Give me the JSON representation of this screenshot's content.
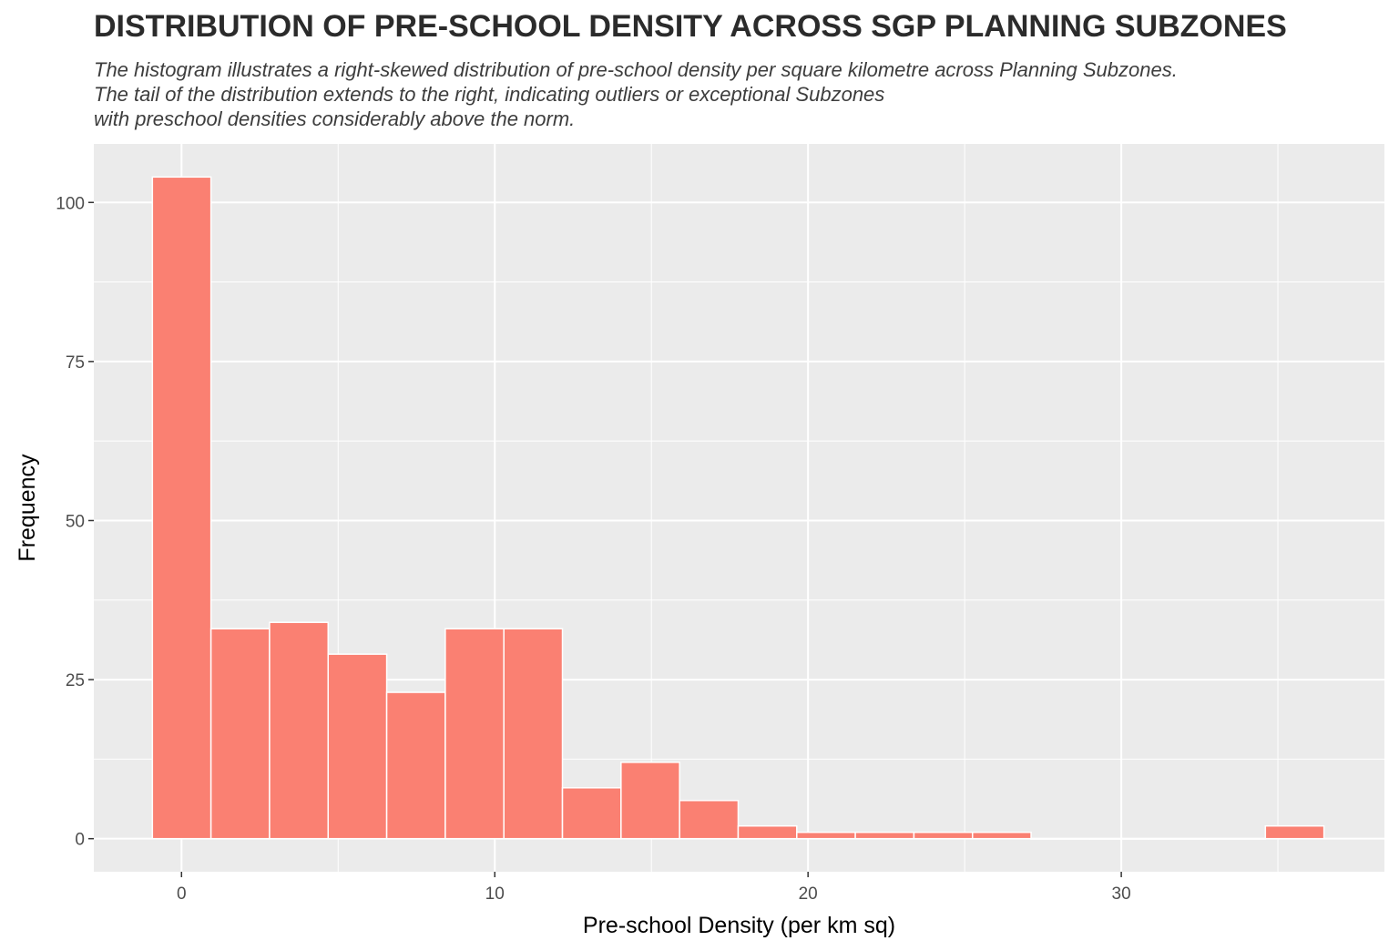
{
  "chart_data": {
    "type": "bar",
    "title": "DISTRIBUTION OF PRE-SCHOOL DENSITY ACROSS SGP PLANNING SUBZONES",
    "subtitle_lines": [
      "The histogram illustrates a right-skewed distribution of pre-school density per square kilometre across Planning Subzones.",
      "The tail of the distribution extends to the right, indicating outliers or exceptional Subzones",
      "with preschool densities considerably above the norm."
    ],
    "xlabel": "Pre-school Density (per km sq)",
    "ylabel": "Frequency",
    "xlim": [
      -2.8,
      38.4
    ],
    "ylim": [
      -5.2,
      109.2
    ],
    "x_ticks": [
      0,
      10,
      20,
      30
    ],
    "y_ticks": [
      0,
      25,
      50,
      75,
      100
    ],
    "x_tick_labels": [
      "0",
      "10",
      "20",
      "30"
    ],
    "y_tick_labels": [
      "0",
      "25",
      "50",
      "75",
      "100"
    ],
    "grid": true,
    "bin_width": 1.87,
    "bins": [
      {
        "x0": -0.93,
        "x1": 0.94,
        "count": 104
      },
      {
        "x0": 0.94,
        "x1": 2.81,
        "count": 33
      },
      {
        "x0": 2.81,
        "x1": 4.68,
        "count": 34
      },
      {
        "x0": 4.68,
        "x1": 6.55,
        "count": 29
      },
      {
        "x0": 6.55,
        "x1": 8.42,
        "count": 23
      },
      {
        "x0": 8.42,
        "x1": 10.29,
        "count": 33
      },
      {
        "x0": 10.29,
        "x1": 12.16,
        "count": 33
      },
      {
        "x0": 12.16,
        "x1": 14.03,
        "count": 8
      },
      {
        "x0": 14.03,
        "x1": 15.9,
        "count": 12
      },
      {
        "x0": 15.9,
        "x1": 17.77,
        "count": 6
      },
      {
        "x0": 17.77,
        "x1": 19.64,
        "count": 2
      },
      {
        "x0": 19.64,
        "x1": 21.51,
        "count": 1
      },
      {
        "x0": 21.51,
        "x1": 23.38,
        "count": 1
      },
      {
        "x0": 23.38,
        "x1": 25.25,
        "count": 1
      },
      {
        "x0": 25.25,
        "x1": 27.12,
        "count": 1
      },
      {
        "x0": 27.12,
        "x1": 28.99,
        "count": 0
      },
      {
        "x0": 28.99,
        "x1": 30.86,
        "count": 0
      },
      {
        "x0": 30.86,
        "x1": 32.73,
        "count": 0
      },
      {
        "x0": 32.73,
        "x1": 34.6,
        "count": 0
      },
      {
        "x0": 34.6,
        "x1": 36.47,
        "count": 2
      }
    ],
    "colors": {
      "fill": "#FA8072",
      "bar_border": "#ffffff",
      "panel_background": "#EBEBEB",
      "gridline": "#ffffff"
    }
  }
}
